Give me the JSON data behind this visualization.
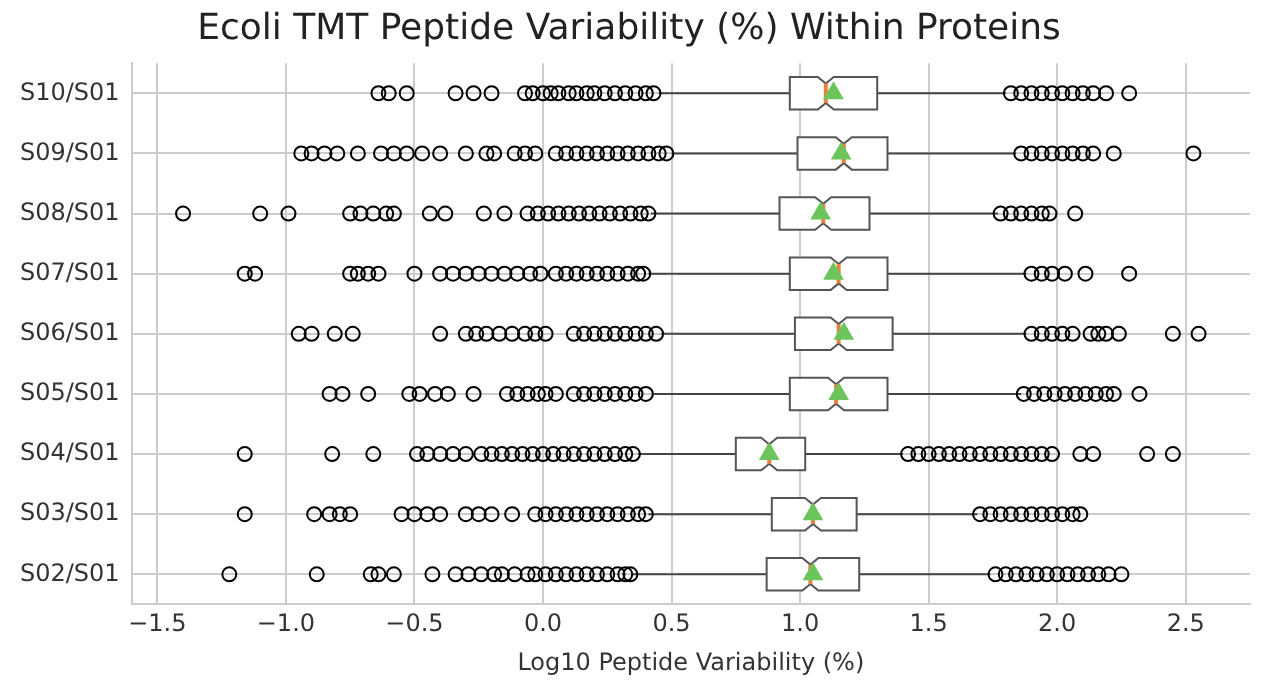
{
  "chart_data": {
    "type": "box",
    "orientation": "horizontal",
    "title": "Ecoli TMT Peptide Variability (%) Within Proteins",
    "xlabel": "Log10 Peptide Variability (%)",
    "categories": [
      "S10/S01",
      "S09/S01",
      "S08/S01",
      "S07/S01",
      "S06/S01",
      "S05/S01",
      "S04/S01",
      "S03/S01",
      "S02/S01"
    ],
    "boxes": [
      {
        "low": 0.45,
        "q1": 0.96,
        "median": 1.1,
        "q3": 1.3,
        "high": 1.8,
        "mean": 1.13,
        "outliers": [
          -0.64,
          -0.6,
          -0.53,
          -0.34,
          -0.27,
          -0.2,
          -0.07,
          -0.04,
          0.0,
          0.03,
          0.06,
          0.1,
          0.13,
          0.17,
          0.2,
          0.24,
          0.28,
          0.32,
          0.36,
          0.4,
          0.43,
          1.82,
          1.86,
          1.9,
          1.94,
          1.98,
          2.02,
          2.06,
          2.1,
          2.14,
          2.19,
          2.28
        ]
      },
      {
        "low": 0.5,
        "q1": 0.99,
        "median": 1.17,
        "q3": 1.34,
        "high": 1.84,
        "mean": 1.16,
        "outliers": [
          -0.94,
          -0.9,
          -0.85,
          -0.8,
          -0.72,
          -0.63,
          -0.58,
          -0.53,
          -0.47,
          -0.4,
          -0.3,
          -0.22,
          -0.19,
          -0.11,
          -0.07,
          -0.03,
          0.05,
          0.09,
          0.13,
          0.17,
          0.21,
          0.25,
          0.29,
          0.33,
          0.37,
          0.41,
          0.45,
          0.48,
          1.86,
          1.9,
          1.94,
          1.98,
          2.02,
          2.06,
          2.1,
          2.14,
          2.22,
          2.53
        ]
      },
      {
        "low": 0.42,
        "q1": 0.92,
        "median": 1.09,
        "q3": 1.27,
        "high": 1.77,
        "mean": 1.08,
        "outliers": [
          -1.4,
          -1.1,
          -0.99,
          -0.75,
          -0.71,
          -0.66,
          -0.61,
          -0.58,
          -0.44,
          -0.38,
          -0.23,
          -0.15,
          -0.06,
          -0.02,
          0.02,
          0.06,
          0.1,
          0.14,
          0.18,
          0.22,
          0.26,
          0.3,
          0.34,
          0.38,
          0.41,
          1.78,
          1.82,
          1.86,
          1.9,
          1.94,
          1.97,
          2.07
        ]
      },
      {
        "low": 0.41,
        "q1": 0.96,
        "median": 1.15,
        "q3": 1.34,
        "high": 1.88,
        "mean": 1.13,
        "outliers": [
          -1.16,
          -1.12,
          -0.75,
          -0.72,
          -0.68,
          -0.64,
          -0.5,
          -0.4,
          -0.35,
          -0.3,
          -0.25,
          -0.2,
          -0.15,
          -0.1,
          -0.05,
          -0.01,
          0.05,
          0.09,
          0.13,
          0.17,
          0.21,
          0.25,
          0.29,
          0.33,
          0.37,
          0.39,
          1.9,
          1.94,
          1.98,
          2.03,
          2.11,
          2.28
        ]
      },
      {
        "low": 0.46,
        "q1": 0.98,
        "median": 1.15,
        "q3": 1.36,
        "high": 1.88,
        "mean": 1.17,
        "outliers": [
          -0.95,
          -0.9,
          -0.81,
          -0.74,
          -0.4,
          -0.3,
          -0.26,
          -0.22,
          -0.17,
          -0.12,
          -0.07,
          -0.03,
          0.01,
          0.12,
          0.16,
          0.2,
          0.24,
          0.28,
          0.32,
          0.36,
          0.4,
          0.44,
          1.9,
          1.94,
          1.98,
          2.02,
          2.06,
          2.13,
          2.16,
          2.19,
          2.24,
          2.45,
          2.55
        ]
      },
      {
        "low": 0.43,
        "q1": 0.96,
        "median": 1.14,
        "q3": 1.34,
        "high": 1.86,
        "mean": 1.15,
        "outliers": [
          -0.83,
          -0.78,
          -0.68,
          -0.52,
          -0.48,
          -0.42,
          -0.37,
          -0.27,
          -0.14,
          -0.1,
          -0.06,
          -0.02,
          0.01,
          0.05,
          0.12,
          0.16,
          0.2,
          0.24,
          0.28,
          0.32,
          0.36,
          0.4,
          1.87,
          1.91,
          1.95,
          1.99,
          2.03,
          2.07,
          2.11,
          2.15,
          2.19,
          2.22,
          2.32
        ]
      },
      {
        "low": 0.37,
        "q1": 0.75,
        "median": 0.88,
        "q3": 1.02,
        "high": 1.4,
        "mean": 0.88,
        "outliers": [
          -1.16,
          -0.82,
          -0.66,
          -0.49,
          -0.45,
          -0.4,
          -0.35,
          -0.3,
          -0.24,
          -0.2,
          -0.16,
          -0.12,
          -0.08,
          -0.04,
          0.0,
          0.04,
          0.08,
          0.12,
          0.16,
          0.2,
          0.24,
          0.28,
          0.32,
          0.35,
          1.42,
          1.46,
          1.5,
          1.54,
          1.58,
          1.62,
          1.66,
          1.7,
          1.74,
          1.78,
          1.82,
          1.86,
          1.9,
          1.94,
          1.98,
          2.09,
          2.14,
          2.35,
          2.45
        ]
      },
      {
        "low": 0.41,
        "q1": 0.89,
        "median": 1.05,
        "q3": 1.22,
        "high": 1.69,
        "mean": 1.05,
        "outliers": [
          -1.16,
          -0.89,
          -0.83,
          -0.79,
          -0.75,
          -0.55,
          -0.5,
          -0.45,
          -0.4,
          -0.3,
          -0.25,
          -0.2,
          -0.12,
          -0.03,
          0.01,
          0.05,
          0.09,
          0.13,
          0.17,
          0.21,
          0.25,
          0.29,
          0.33,
          0.37,
          0.4,
          1.7,
          1.74,
          1.78,
          1.82,
          1.86,
          1.9,
          1.94,
          1.98,
          2.02,
          2.06,
          2.09
        ]
      },
      {
        "low": 0.35,
        "q1": 0.87,
        "median": 1.04,
        "q3": 1.23,
        "high": 1.74,
        "mean": 1.05,
        "outliers": [
          -1.22,
          -0.88,
          -0.67,
          -0.64,
          -0.58,
          -0.43,
          -0.34,
          -0.29,
          -0.24,
          -0.19,
          -0.16,
          -0.11,
          -0.06,
          -0.03,
          0.01,
          0.05,
          0.09,
          0.13,
          0.17,
          0.21,
          0.25,
          0.29,
          0.32,
          0.34,
          1.76,
          1.8,
          1.84,
          1.88,
          1.92,
          1.96,
          2.0,
          2.04,
          2.08,
          2.12,
          2.16,
          2.2,
          2.25
        ]
      }
    ],
    "xlim": [
      -1.6,
      2.75
    ],
    "xticks": [
      {
        "value": -1.5,
        "label": "−1.5"
      },
      {
        "value": -1.0,
        "label": "−1.0"
      },
      {
        "value": -0.5,
        "label": "−0.5"
      },
      {
        "value": 0,
        "label": "0.0"
      },
      {
        "value": 0.5,
        "label": "0.5"
      },
      {
        "value": 1.0,
        "label": "1.0"
      },
      {
        "value": 1.5,
        "label": "1.5"
      },
      {
        "value": 2.0,
        "label": "2.0"
      },
      {
        "value": 2.5,
        "label": "2.5"
      }
    ],
    "grid": true
  }
}
